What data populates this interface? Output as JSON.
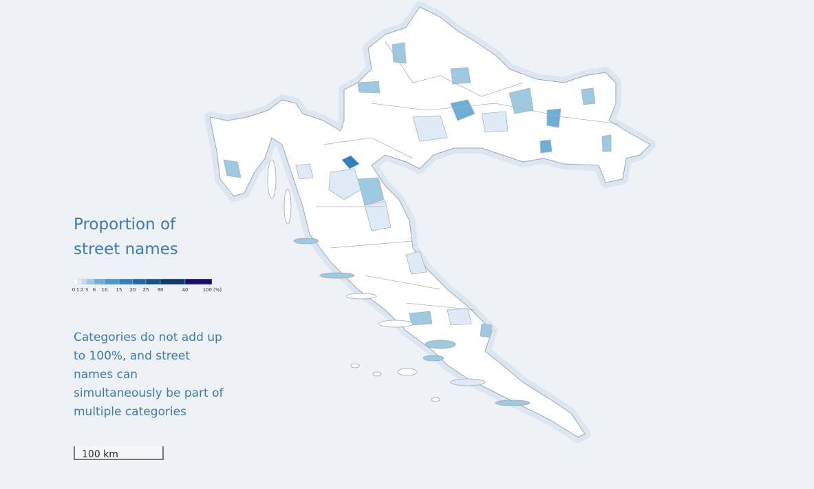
{
  "legend": {
    "title": "Proportion of street names",
    "breaks": [
      0,
      1,
      2,
      3,
      6,
      10,
      15,
      20,
      25,
      30,
      40,
      100
    ],
    "unit": "(%)",
    "colors": [
      "#ffffff",
      "#deebf7",
      "#c6dbef",
      "#9ecae1",
      "#6baed6",
      "#4a98d0",
      "#2f80c0",
      "#2068a8",
      "#155390",
      "#0d3a66",
      "#1a0a74"
    ]
  },
  "note": "Categories do not add up to 100%, and street names can simultaneously be part of multiple categories",
  "scale_bar": "100 km"
}
